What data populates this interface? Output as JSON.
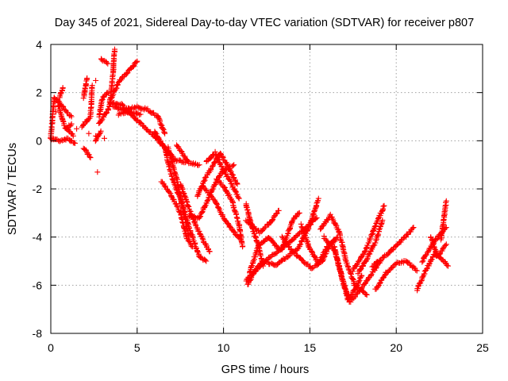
{
  "chart_data": {
    "type": "scatter",
    "title": "Day 345 of 2021, Sidereal Day-to-day VTEC variation (SDTVAR) for receiver p807",
    "xlabel": "GPS time / hours",
    "ylabel": "SDTVAR / TECUs",
    "xlim": [
      0,
      25
    ],
    "ylim": [
      -8,
      4
    ],
    "xticks": [
      "0",
      "5",
      "10",
      "15",
      "20",
      "25"
    ],
    "yticks": [
      "4",
      "2",
      "0",
      "-2",
      "-4",
      "-6",
      "-8"
    ],
    "grid": true,
    "marker": "+",
    "series": [
      {
        "name": "p807",
        "color": "#ff0000",
        "tracks": [
          [
            [
              0.0,
              0.1
            ],
            [
              0.2,
              1.8
            ],
            [
              0.6,
              1.5
            ],
            [
              0.9,
              1.2
            ],
            [
              1.2,
              1.0
            ]
          ],
          [
            [
              0.4,
              1.6
            ],
            [
              0.8,
              0.6
            ],
            [
              1.3,
              0.2
            ]
          ],
          [
            [
              0.5,
              1.8
            ],
            [
              0.7,
              2.2
            ]
          ],
          [
            [
              0.9,
              0.5
            ],
            [
              1.2,
              0.7
            ]
          ],
          [
            [
              0.0,
              0.1
            ],
            [
              0.5,
              0.0
            ],
            [
              1.0,
              0.1
            ],
            [
              1.4,
              -0.1
            ]
          ],
          [
            [
              1.9,
              -0.3
            ],
            [
              2.3,
              -0.7
            ]
          ],
          [
            [
              1.9,
              1.8
            ],
            [
              2.1,
              2.6
            ]
          ],
          [
            [
              1.8,
              0.6
            ],
            [
              2.3,
              1.0
            ],
            [
              2.4,
              2.3
            ]
          ],
          [
            [
              2.6,
              0.0
            ],
            [
              2.9,
              0.4
            ]
          ],
          [
            [
              2.8,
              1.0
            ],
            [
              3.0,
              1.8
            ],
            [
              3.3,
              2.0
            ]
          ],
          [
            [
              2.8,
              0.7
            ],
            [
              3.4,
              1.4
            ],
            [
              3.6,
              2.8
            ],
            [
              3.7,
              3.8
            ]
          ],
          [
            [
              2.9,
              3.4
            ],
            [
              3.3,
              3.2
            ]
          ],
          [
            [
              3.6,
              1.4
            ],
            [
              4.2,
              1.3
            ],
            [
              5.0,
              1.4
            ],
            [
              5.6,
              1.3
            ],
            [
              6.2,
              1.0
            ],
            [
              6.6,
              0.3
            ]
          ],
          [
            [
              3.4,
              1.6
            ],
            [
              4.1,
              1.5
            ],
            [
              4.8,
              1.0
            ],
            [
              5.5,
              0.5
            ],
            [
              6.0,
              0.2
            ],
            [
              6.6,
              -0.3
            ],
            [
              7.2,
              -0.8
            ],
            [
              7.8,
              -0.9
            ]
          ],
          [
            [
              3.5,
              1.8
            ],
            [
              4.0,
              2.5
            ],
            [
              4.5,
              2.9
            ],
            [
              5.0,
              3.3
            ]
          ],
          [
            [
              3.9,
              1.1
            ],
            [
              4.5,
              1.2
            ],
            [
              5.2,
              1.1
            ]
          ],
          [
            [
              6.0,
              0.4
            ],
            [
              6.6,
              -0.3
            ],
            [
              7.0,
              -1.5
            ],
            [
              7.6,
              -2.6
            ],
            [
              8.1,
              -3.8
            ],
            [
              8.6,
              -4.8
            ],
            [
              9.0,
              -5.0
            ]
          ],
          [
            [
              6.8,
              -0.3
            ],
            [
              7.3,
              -1.6
            ],
            [
              7.7,
              -3.0
            ],
            [
              8.0,
              -4.0
            ]
          ],
          [
            [
              7.3,
              -0.2
            ],
            [
              8.0,
              -0.9
            ],
            [
              8.6,
              -1.0
            ]
          ],
          [
            [
              7.5,
              -1.8
            ],
            [
              8.2,
              -3.2
            ],
            [
              8.8,
              -4.1
            ],
            [
              9.2,
              -4.6
            ]
          ],
          [
            [
              6.4,
              -1.7
            ],
            [
              7.0,
              -2.3
            ],
            [
              7.5,
              -3.0
            ],
            [
              7.9,
              -4.1
            ],
            [
              8.2,
              -4.4
            ]
          ],
          [
            [
              8.0,
              -3.1
            ],
            [
              8.6,
              -3.2
            ],
            [
              9.0,
              -2.6
            ],
            [
              9.5,
              -1.8
            ],
            [
              10.0,
              -1.2
            ],
            [
              10.6,
              -1.0
            ]
          ],
          [
            [
              8.5,
              -2.3
            ],
            [
              8.9,
              -1.6
            ],
            [
              9.4,
              -1.0
            ],
            [
              9.8,
              -0.5
            ],
            [
              10.2,
              -1.0
            ],
            [
              10.8,
              -1.8
            ]
          ],
          [
            [
              9.0,
              -0.9
            ],
            [
              9.5,
              -0.5
            ],
            [
              9.9,
              -1.1
            ],
            [
              10.4,
              -1.7
            ],
            [
              10.9,
              -2.4
            ]
          ],
          [
            [
              8.8,
              -1.9
            ],
            [
              9.5,
              -2.5
            ],
            [
              10.0,
              -3.2
            ],
            [
              10.6,
              -3.8
            ],
            [
              11.0,
              -4.1
            ]
          ],
          [
            [
              9.6,
              -1.6
            ],
            [
              10.0,
              -1.9
            ],
            [
              10.5,
              -2.5
            ],
            [
              10.9,
              -3.5
            ],
            [
              11.1,
              -4.4
            ]
          ],
          [
            [
              11.3,
              -2.6
            ],
            [
              11.6,
              -3.5
            ],
            [
              12.0,
              -4.3
            ],
            [
              12.3,
              -5.2
            ]
          ],
          [
            [
              11.3,
              -3.3
            ],
            [
              12.1,
              -3.8
            ],
            [
              12.7,
              -3.4
            ],
            [
              13.2,
              -2.9
            ]
          ],
          [
            [
              11.5,
              -5.5
            ],
            [
              12.0,
              -4.4
            ],
            [
              12.6,
              -4.0
            ],
            [
              13.2,
              -4.5
            ],
            [
              14.0,
              -4.1
            ],
            [
              14.8,
              -3.6
            ],
            [
              15.4,
              -3.2
            ]
          ],
          [
            [
              11.4,
              -6.0
            ],
            [
              11.8,
              -5.4
            ],
            [
              12.3,
              -5.0
            ],
            [
              13.0,
              -5.2
            ],
            [
              13.7,
              -4.8
            ],
            [
              14.3,
              -4.5
            ],
            [
              15.0,
              -3.5
            ],
            [
              15.5,
              -2.4
            ]
          ],
          [
            [
              11.3,
              -5.8
            ],
            [
              12.0,
              -5.3
            ],
            [
              12.7,
              -4.8
            ],
            [
              13.4,
              -4.5
            ],
            [
              14.0,
              -3.3
            ],
            [
              14.4,
              -3.0
            ]
          ],
          [
            [
              13.4,
              -4.0
            ],
            [
              14.0,
              -4.6
            ],
            [
              14.6,
              -5.0
            ],
            [
              15.1,
              -5.3
            ],
            [
              15.7,
              -5.0
            ],
            [
              16.2,
              -4.3
            ],
            [
              16.6,
              -4.0
            ]
          ],
          [
            [
              14.5,
              -3.5
            ],
            [
              15.0,
              -4.5
            ],
            [
              15.5,
              -5.1
            ],
            [
              16.0,
              -4.4
            ],
            [
              16.5,
              -4.1
            ]
          ],
          [
            [
              15.6,
              -3.7
            ],
            [
              16.2,
              -3.1
            ],
            [
              16.7,
              -3.8
            ],
            [
              17.1,
              -5.0
            ],
            [
              17.6,
              -6.0
            ],
            [
              18.3,
              -6.4
            ]
          ],
          [
            [
              15.8,
              -4.0
            ],
            [
              16.4,
              -4.5
            ],
            [
              16.8,
              -5.5
            ],
            [
              17.2,
              -6.6
            ],
            [
              17.6,
              -6.2
            ],
            [
              18.0,
              -5.6
            ]
          ],
          [
            [
              16.4,
              -4.4
            ],
            [
              16.9,
              -5.8
            ],
            [
              17.3,
              -6.7
            ],
            [
              17.8,
              -6.3
            ],
            [
              18.5,
              -5.6
            ],
            [
              19.1,
              -5.0
            ]
          ],
          [
            [
              17.5,
              -5.4
            ],
            [
              18.2,
              -4.6
            ],
            [
              18.8,
              -3.5
            ],
            [
              19.3,
              -2.7
            ]
          ],
          [
            [
              18.6,
              -5.2
            ],
            [
              19.2,
              -4.9
            ],
            [
              19.8,
              -4.5
            ],
            [
              20.5,
              -4.0
            ],
            [
              21.0,
              -3.6
            ]
          ],
          [
            [
              18.8,
              -6.2
            ],
            [
              19.4,
              -5.5
            ],
            [
              20.0,
              -5.1
            ],
            [
              20.6,
              -5.0
            ],
            [
              21.2,
              -5.4
            ]
          ],
          [
            [
              17.8,
              -5.5
            ],
            [
              18.3,
              -4.9
            ],
            [
              18.8,
              -4.2
            ],
            [
              19.2,
              -3.3
            ]
          ],
          [
            [
              21.2,
              -6.2
            ],
            [
              21.7,
              -5.4
            ],
            [
              22.2,
              -4.7
            ],
            [
              22.6,
              -4.9
            ],
            [
              23.0,
              -5.2
            ]
          ],
          [
            [
              21.5,
              -5.0
            ],
            [
              22.0,
              -4.4
            ],
            [
              22.5,
              -3.9
            ],
            [
              22.9,
              -3.6
            ]
          ],
          [
            [
              22.6,
              -4.1
            ],
            [
              22.8,
              -3.0
            ],
            [
              22.9,
              -2.5
            ]
          ],
          [
            [
              22.0,
              -4.0
            ],
            [
              22.4,
              -4.8
            ],
            [
              22.9,
              -4.3
            ]
          ]
        ],
        "scatter": [
          [
            2.7,
            -1.3
          ],
          [
            2.6,
            2.5
          ],
          [
            2.6,
            0.2
          ],
          [
            1.1,
            0.0
          ],
          [
            1.5,
            0.5
          ],
          [
            2.2,
            0.3
          ],
          [
            3.1,
            0.1
          ],
          [
            0.3,
            1.2
          ]
        ]
      }
    ]
  }
}
